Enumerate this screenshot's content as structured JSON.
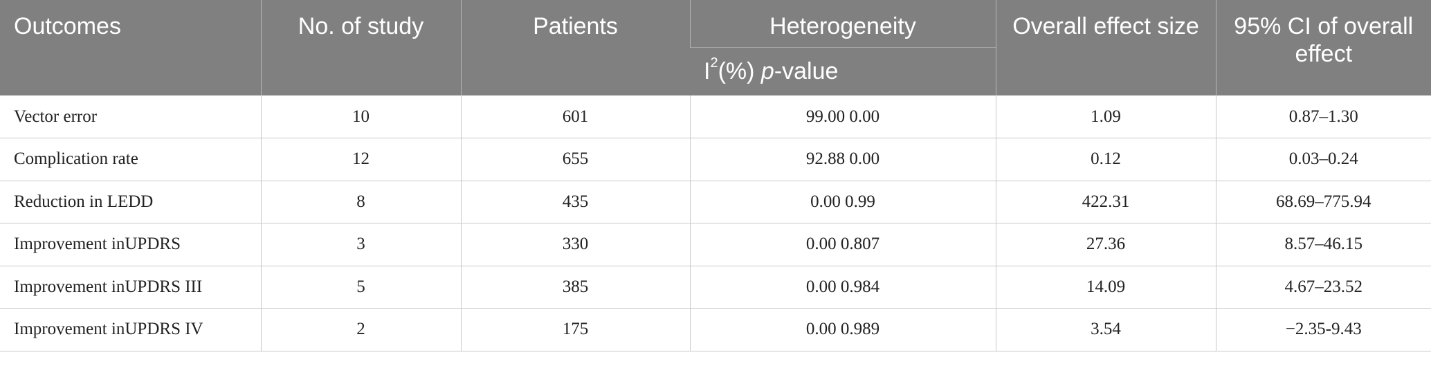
{
  "header": {
    "outcomes": "Outcomes",
    "no_of_study": "No. of study",
    "patients": "Patients",
    "heterogeneity": "Heterogeneity",
    "i2_prefix": "I",
    "i2_sup": "2",
    "i2_suffix": "(%) ",
    "p_italic": "p",
    "p_suffix": "-value",
    "overall_effect": "Overall effect size",
    "ci": "95% CI of overall effect"
  },
  "rows": [
    {
      "outcome": "Vector error",
      "studies": "10",
      "patients": "601",
      "heterogeneity": "99.00 0.00",
      "effect": "1.09",
      "ci": "0.87–1.30"
    },
    {
      "outcome": "Complication rate",
      "studies": "12",
      "patients": "655",
      "heterogeneity": "92.88 0.00",
      "effect": "0.12",
      "ci": "0.03–0.24"
    },
    {
      "outcome": "Reduction in LEDD",
      "studies": "8",
      "patients": "435",
      "heterogeneity": "0.00 0.99",
      "effect": "422.31",
      "ci": "68.69–775.94"
    },
    {
      "outcome": "Improvement inUPDRS",
      "studies": "3",
      "patients": "330",
      "heterogeneity": "0.00 0.807",
      "effect": "27.36",
      "ci": "8.57–46.15"
    },
    {
      "outcome": "Improvement inUPDRS III",
      "studies": "5",
      "patients": "385",
      "heterogeneity": "0.00 0.984",
      "effect": "14.09",
      "ci": "4.67–23.52"
    },
    {
      "outcome": "Improvement inUPDRS IV",
      "studies": "2",
      "patients": "175",
      "heterogeneity": "0.00 0.989",
      "effect": "3.54",
      "ci": "−2.35-9.43"
    }
  ]
}
